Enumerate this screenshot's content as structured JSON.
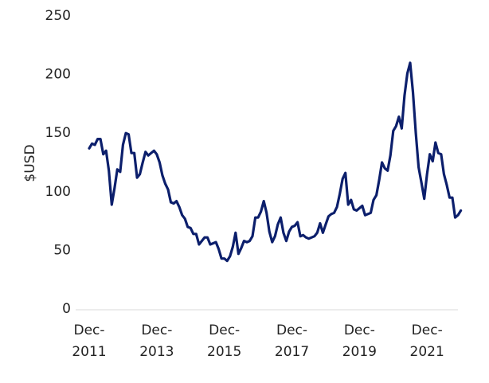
{
  "chart_data": {
    "type": "line",
    "y_label": "$USD",
    "categories": [
      "Dec-2011",
      null,
      null,
      null,
      null,
      null,
      null,
      null,
      null,
      null,
      null,
      null,
      null,
      null,
      null,
      null,
      null,
      null,
      null,
      null,
      null,
      null,
      null,
      null,
      "Dec-2013",
      null,
      null,
      null,
      null,
      null,
      null,
      null,
      null,
      null,
      null,
      null,
      null,
      null,
      null,
      null,
      null,
      null,
      null,
      null,
      null,
      null,
      null,
      null,
      "Dec-2015",
      null,
      null,
      null,
      null,
      null,
      null,
      null,
      null,
      null,
      null,
      null,
      null,
      null,
      null,
      null,
      null,
      null,
      null,
      null,
      null,
      null,
      null,
      null,
      "Dec-2017",
      null,
      null,
      null,
      null,
      null,
      null,
      null,
      null,
      null,
      null,
      null,
      null,
      null,
      null,
      null,
      null,
      null,
      null,
      null,
      null,
      null,
      null,
      null,
      "Dec-2019",
      null,
      null,
      null,
      null,
      null,
      null,
      null,
      null,
      null,
      null,
      null,
      null,
      null,
      null,
      null,
      null,
      null,
      null,
      null,
      null,
      null,
      null,
      null,
      "Dec-2021",
      null,
      null,
      null,
      null,
      null,
      null,
      null,
      null,
      null,
      null,
      null,
      null
    ],
    "values": [
      137,
      141,
      140,
      145,
      145,
      132,
      135,
      118,
      89,
      103,
      119,
      117,
      140,
      150,
      149,
      133,
      133,
      112,
      115,
      125,
      134,
      131,
      133,
      135,
      132,
      125,
      114,
      107,
      102,
      91,
      90,
      92,
      87,
      80,
      77,
      70,
      69,
      64,
      64,
      55,
      58,
      61,
      61,
      55,
      56,
      57,
      51,
      43,
      43,
      41,
      45,
      53,
      65,
      47,
      52,
      58,
      57,
      58,
      62,
      78,
      78,
      83,
      92,
      82,
      66,
      57,
      62,
      72,
      78,
      65,
      58,
      66,
      70,
      71,
      74,
      62,
      63,
      61,
      60,
      61,
      62,
      65,
      73,
      65,
      72,
      79,
      81,
      82,
      87,
      98,
      111,
      116,
      89,
      93,
      85,
      84,
      86,
      88,
      80,
      81,
      82,
      93,
      97,
      110,
      125,
      120,
      118,
      131,
      152,
      156,
      164,
      154,
      182,
      201,
      210,
      185,
      150,
      121,
      108,
      94,
      115,
      132,
      126,
      142,
      133,
      132,
      115,
      106,
      95,
      95,
      78,
      80,
      84
    ],
    "color": "#0c1f6c",
    "ylim": [
      0,
      250
    ],
    "yticks": [
      0,
      50,
      100,
      150,
      200,
      250
    ],
    "grid": false
  }
}
